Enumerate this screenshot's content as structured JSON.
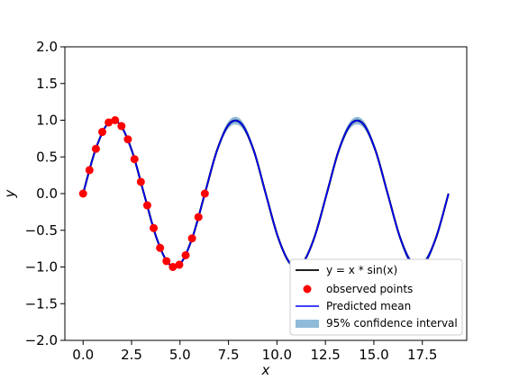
{
  "chart_data": {
    "type": "line",
    "title": "",
    "xlabel": "x",
    "ylabel": "y",
    "xlim": [
      -0.94,
      19.79
    ],
    "ylim": [
      -2.0,
      2.0
    ],
    "xticks": [
      0.0,
      2.5,
      5.0,
      7.5,
      10.0,
      12.5,
      15.0,
      17.5
    ],
    "xtick_labels": [
      "0.0",
      "2.5",
      "5.0",
      "7.5",
      "10.0",
      "12.5",
      "15.0",
      "17.5"
    ],
    "yticks": [
      -2.0,
      -1.5,
      -1.0,
      -0.5,
      0.0,
      0.5,
      1.0,
      1.5,
      2.0
    ],
    "ytick_labels": [
      "−2.0",
      "−1.5",
      "−1.0",
      "−0.5",
      "0.0",
      "0.5",
      "1.0",
      "1.5",
      "2.0"
    ],
    "grid": false,
    "legend_position": "lower-right",
    "series": [
      {
        "name": "y = x * sin(x)",
        "legend_label": "y = x * sin(x)",
        "kind": "line",
        "color": "#000000",
        "x": [
          0.0,
          0.63,
          1.26,
          1.88,
          2.51,
          3.14,
          3.77,
          4.4,
          5.03,
          5.65,
          6.28,
          6.91,
          7.54,
          8.17,
          8.8,
          9.42,
          10.05,
          10.68,
          11.31,
          11.94,
          12.57,
          13.19,
          13.82,
          14.45,
          15.08,
          15.71,
          16.34,
          16.96,
          17.59,
          18.22,
          18.85
        ],
        "values": [
          0.0,
          0.59,
          0.95,
          0.95,
          0.59,
          0.0,
          -0.59,
          -0.95,
          -0.95,
          -0.59,
          0.0,
          0.59,
          0.95,
          0.95,
          0.59,
          0.0,
          -0.59,
          -0.95,
          -0.95,
          -0.59,
          0.0,
          0.59,
          0.95,
          0.95,
          0.59,
          0.0,
          -0.59,
          -0.95,
          -0.95,
          -0.59,
          0.0
        ]
      },
      {
        "name": "observed points",
        "legend_label": "observed points",
        "kind": "scatter",
        "color": "#ff0000",
        "x": [
          0.0,
          0.33,
          0.66,
          0.99,
          1.32,
          1.65,
          1.98,
          2.31,
          2.65,
          2.98,
          3.31,
          3.64,
          3.97,
          4.3,
          4.63,
          4.96,
          5.29,
          5.62,
          5.95,
          6.28
        ],
        "values": [
          0.0,
          0.32,
          0.61,
          0.84,
          0.97,
          1.0,
          0.92,
          0.74,
          0.47,
          0.16,
          -0.16,
          -0.47,
          -0.74,
          -0.92,
          -1.0,
          -0.97,
          -0.84,
          -0.61,
          -0.32,
          0.0
        ]
      },
      {
        "name": "Predicted mean",
        "legend_label": "Predicted mean",
        "kind": "line",
        "color": "#0000ff",
        "x": [
          0.0,
          0.63,
          1.26,
          1.88,
          2.51,
          3.14,
          3.77,
          4.4,
          5.03,
          5.65,
          6.28,
          6.91,
          7.54,
          8.17,
          8.8,
          9.42,
          10.05,
          10.68,
          11.31,
          11.94,
          12.57,
          13.19,
          13.82,
          14.45,
          15.08,
          15.71,
          16.34,
          16.96,
          17.59,
          18.22,
          18.85
        ],
        "values": [
          0.0,
          0.59,
          0.95,
          0.95,
          0.59,
          0.0,
          -0.59,
          -0.95,
          -0.95,
          -0.59,
          0.0,
          0.59,
          0.95,
          0.95,
          0.59,
          0.0,
          -0.59,
          -0.95,
          -0.95,
          -0.59,
          0.0,
          0.59,
          0.95,
          0.95,
          0.59,
          0.0,
          -0.59,
          -0.95,
          -0.95,
          -0.59,
          0.0
        ]
      },
      {
        "name": "95% confidence interval",
        "legend_label": "95% confidence interval",
        "kind": "band",
        "color": "#1f77b4",
        "opacity": 0.5,
        "x": [
          0.0,
          0.63,
          1.26,
          1.88,
          2.51,
          3.14,
          3.77,
          4.4,
          5.03,
          5.65,
          6.28,
          6.91,
          7.54,
          8.17,
          8.8,
          9.42,
          10.05,
          10.68,
          11.31,
          11.94,
          12.57,
          13.19,
          13.82,
          14.45,
          15.08,
          15.71,
          16.34,
          16.96,
          17.59,
          18.22,
          18.85
        ],
        "lower": [
          0.0,
          0.58,
          0.94,
          0.94,
          0.58,
          -0.01,
          -0.6,
          -0.96,
          -0.96,
          -0.6,
          -0.02,
          0.56,
          0.9,
          0.9,
          0.55,
          -0.03,
          -0.62,
          -0.98,
          -0.98,
          -0.62,
          -0.03,
          0.55,
          0.9,
          0.9,
          0.55,
          -0.03,
          -0.63,
          -1.0,
          -1.0,
          -0.62,
          -0.01
        ],
        "upper": [
          0.0,
          0.6,
          0.96,
          0.96,
          0.6,
          0.01,
          -0.58,
          -0.94,
          -0.94,
          -0.58,
          0.02,
          0.62,
          1.0,
          1.0,
          0.63,
          0.03,
          -0.56,
          -0.92,
          -0.92,
          -0.56,
          0.03,
          0.63,
          1.0,
          1.0,
          0.63,
          0.03,
          -0.55,
          -0.9,
          -0.9,
          -0.56,
          0.01
        ]
      }
    ]
  }
}
